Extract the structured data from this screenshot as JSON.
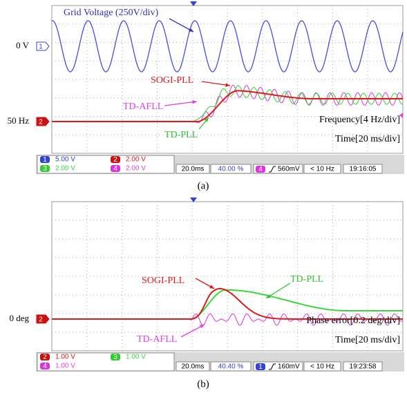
{
  "panels": [
    {
      "left_labels": [
        "0 V",
        "50 Hz"
      ],
      "channel_markers": [
        "1",
        "2"
      ],
      "annotations": {
        "grid_voltage": "Grid Voltage (250V/div)",
        "sogi_pll": "SOGI-PLL",
        "td_afll": "TD-AFLL",
        "td_pll": "TD-PLL",
        "measure": "Frequency[4 Hz/div]",
        "time": "Time[20 ms/div]"
      },
      "status": {
        "channels": [
          {
            "num": "1",
            "scale": "5.00 V"
          },
          {
            "num": "2",
            "scale": "2.00 V"
          },
          {
            "num": "3",
            "scale": "2.00 V"
          },
          {
            "num": "4",
            "scale": "2.00 V"
          }
        ],
        "timebase": "20.0ms",
        "position": "40.00 %",
        "trigger_channel": "4",
        "trigger_level": "560mV",
        "trigger_freq": "< 10 Hz",
        "clock": "19:16:05"
      },
      "caption": "(a)"
    },
    {
      "left_labels": [
        "0 deg"
      ],
      "channel_markers": [
        "2"
      ],
      "annotations": {
        "sogi_pll": "SOGI-PLL",
        "td_afll": "TD-AFLL",
        "td_pll": "TD-PLL",
        "measure": "Phase error[0.2 deg/div]",
        "time": "Time[20 ms/div]"
      },
      "status": {
        "channels": [
          {
            "num": "2",
            "scale": "1.00 V"
          },
          {
            "num": "3",
            "scale": "1.00 V"
          },
          {
            "num": "4",
            "scale": "1.00 V"
          }
        ],
        "timebase": "20.0ms",
        "position": "40.40 %",
        "trigger_channel": "1",
        "trigger_level": "160mV",
        "trigger_freq": "< 10 Hz",
        "clock": "19:23:58"
      },
      "caption": "(b)"
    }
  ]
}
